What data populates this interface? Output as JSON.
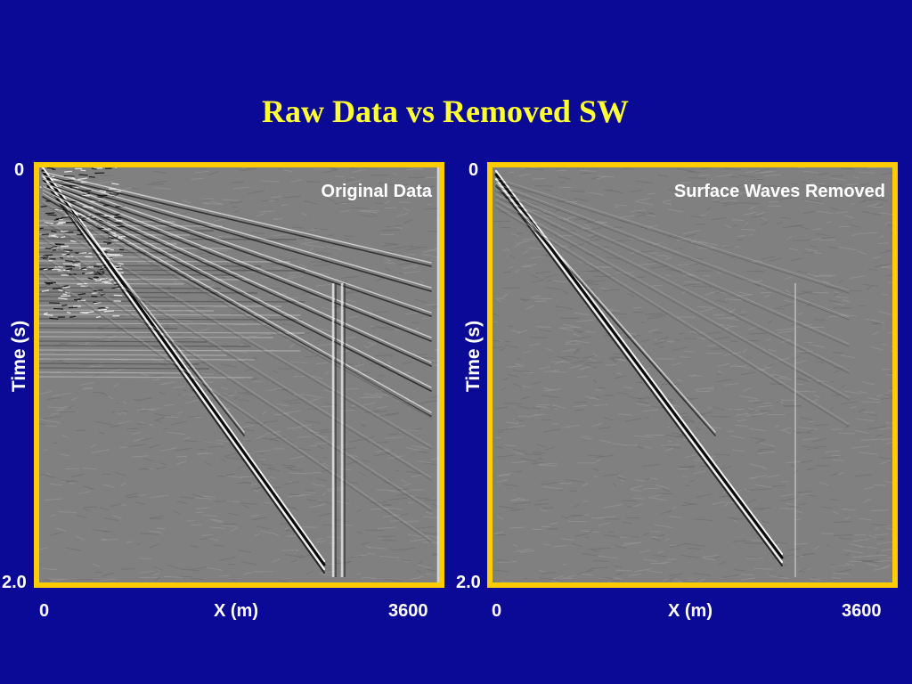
{
  "title": "Raw Data vs Removed SW",
  "colors": {
    "background": "#0a0a96",
    "title": "#ffff33",
    "frame": "#ffcc00",
    "text": "#ffffff",
    "gather_background": "#808080"
  },
  "panels": [
    {
      "label": "Original Data",
      "y_top": "0",
      "y_bottom": "2.0",
      "y_axis": "Time (s)",
      "x_left": "0",
      "x_axis": "X (m)",
      "x_right": "3600"
    },
    {
      "label": "Surface Waves Removed",
      "y_top": "0",
      "y_bottom": "2.0",
      "y_axis": "Time (s)",
      "x_left": "0",
      "x_axis": "X (m)",
      "x_right": "3600"
    }
  ]
}
